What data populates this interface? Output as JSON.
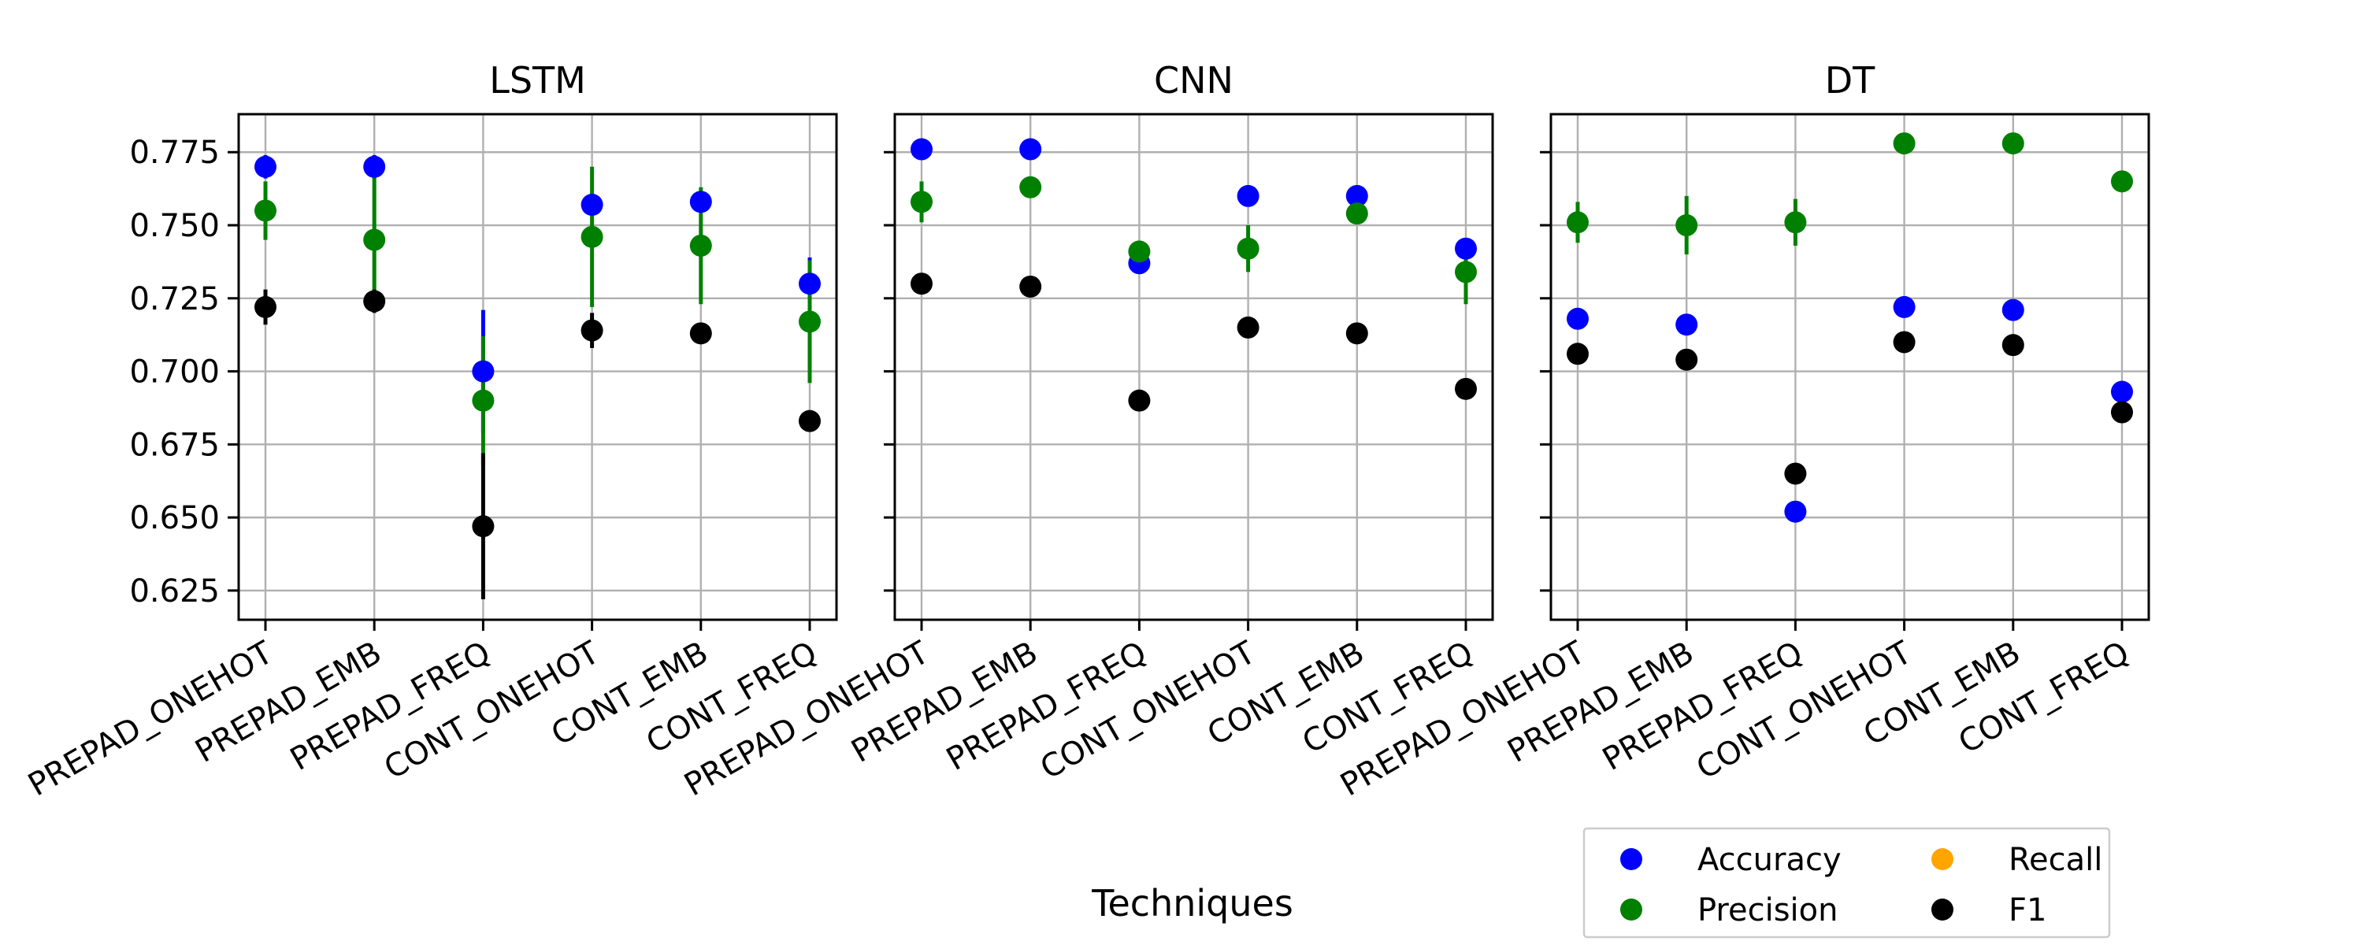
{
  "chart_data": {
    "type": "scatter",
    "xlabel": "Techniques",
    "categories": [
      "PREPAD_ONEHOT",
      "PREPAD_EMB",
      "PREPAD_FREQ",
      "CONT_ONEHOT",
      "CONT_EMB",
      "CONT_FREQ"
    ],
    "ylim": [
      0.615,
      0.788
    ],
    "yticks": [
      0.625,
      0.65,
      0.675,
      0.7,
      0.725,
      0.75,
      0.775
    ],
    "grid": true,
    "legend": {
      "placement": "bottom-right",
      "columns": 2,
      "entries": [
        {
          "name": "Accuracy",
          "color": "#0000ff"
        },
        {
          "name": "Recall",
          "color": "#ffa500"
        },
        {
          "name": "Precision",
          "color": "#008000"
        },
        {
          "name": "F1",
          "color": "#000000"
        }
      ]
    },
    "panels": [
      {
        "title": "LSTM",
        "series": [
          {
            "name": "Accuracy",
            "color": "#0000ff",
            "values": [
              0.77,
              0.77,
              0.7,
              0.757,
              0.758,
              0.73
            ],
            "errors": [
              0.004,
              0.004,
              0.021,
              0.003,
              0.002,
              0.009
            ]
          },
          {
            "name": "Precision",
            "color": "#008000",
            "values": [
              0.755,
              0.745,
              0.69,
              0.746,
              0.743,
              0.717
            ],
            "errors": [
              0.01,
              0.022,
              0.022,
              0.024,
              0.02,
              0.021
            ]
          },
          {
            "name": "F1",
            "color": "#000000",
            "values": [
              0.722,
              0.724,
              0.647,
              0.714,
              0.713,
              0.683
            ],
            "errors": [
              0.006,
              0.004,
              0.025,
              0.006,
              0.002,
              0.003
            ]
          }
        ]
      },
      {
        "title": "CNN",
        "series": [
          {
            "name": "Accuracy",
            "color": "#0000ff",
            "values": [
              0.776,
              0.776,
              0.737,
              0.76,
              0.76,
              0.742
            ],
            "errors": [
              0.0,
              0.0,
              0.0,
              0.0,
              0.0,
              0.0
            ]
          },
          {
            "name": "Precision",
            "color": "#008000",
            "values": [
              0.758,
              0.763,
              0.741,
              0.742,
              0.754,
              0.734
            ],
            "errors": [
              0.007,
              0.0,
              0.0,
              0.008,
              0.0,
              0.011
            ]
          },
          {
            "name": "F1",
            "color": "#000000",
            "values": [
              0.73,
              0.729,
              0.69,
              0.715,
              0.713,
              0.694
            ],
            "errors": [
              0.0,
              0.0,
              0.0,
              0.0,
              0.0,
              0.0
            ]
          }
        ]
      },
      {
        "title": "DT",
        "series": [
          {
            "name": "Accuracy",
            "color": "#0000ff",
            "values": [
              0.718,
              0.716,
              0.652,
              0.722,
              0.721,
              0.693
            ],
            "errors": [
              0.0,
              0.0,
              0.0,
              0.0,
              0.0,
              0.0
            ]
          },
          {
            "name": "Precision",
            "color": "#008000",
            "values": [
              0.751,
              0.75,
              0.751,
              0.778,
              0.778,
              0.765
            ],
            "errors": [
              0.007,
              0.01,
              0.008,
              0.0,
              0.0,
              0.0
            ]
          },
          {
            "name": "F1",
            "color": "#000000",
            "values": [
              0.706,
              0.704,
              0.665,
              0.71,
              0.709,
              0.686
            ],
            "errors": [
              0.0,
              0.0,
              0.0,
              0.0,
              0.0,
              0.0
            ]
          }
        ]
      }
    ]
  }
}
